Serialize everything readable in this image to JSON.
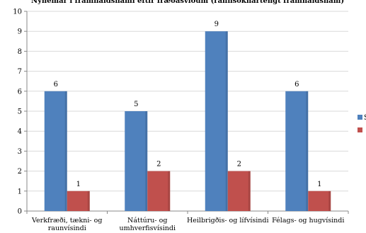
{
  "chart_data": {
    "type": "bar",
    "title": "Nýnemar í framhaldsnámi eftir fræðasviðum (rannsóknartengt framhaldsnám)",
    "categories": [
      [
        "Verkfræði, tækni- og",
        "raunvísindi"
      ],
      [
        "Náttúru- og",
        "umhverfisvísindi"
      ],
      [
        "Heilbrigðis- og lífvísindi"
      ],
      [
        "Félags- og hugvísindi"
      ]
    ],
    "series": [
      {
        "name": "S",
        "color": "#4f81bd",
        "values": [
          6,
          5,
          9,
          6
        ]
      },
      {
        "name": "",
        "color": "#c0504d",
        "values": [
          1,
          2,
          2,
          1
        ]
      }
    ],
    "ylim": [
      0,
      10
    ],
    "yticks": [
      0,
      1,
      2,
      3,
      4,
      5,
      6,
      7,
      8,
      9,
      10
    ],
    "grid": true,
    "legend": "right"
  }
}
